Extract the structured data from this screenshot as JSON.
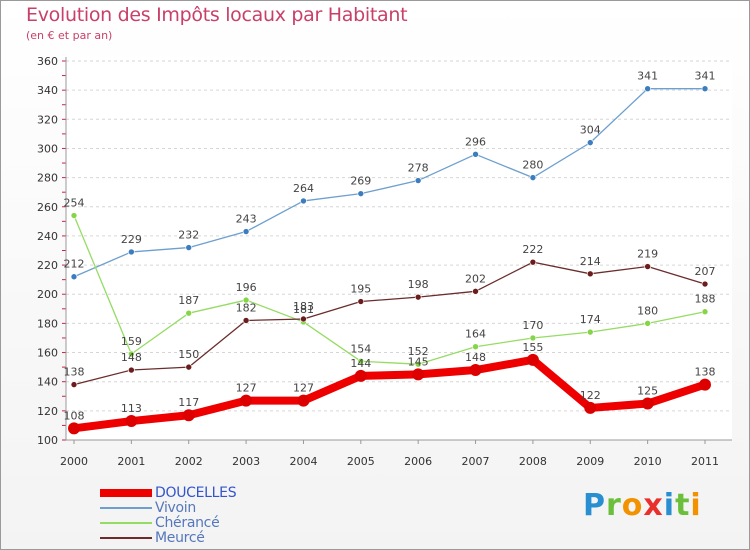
{
  "title": "Evolution des Impôts locaux par Habitant",
  "subtitle": "(en € et par an)",
  "chart_data": {
    "type": "line",
    "title": "Evolution des Impôts locaux par Habitant",
    "subtitle": "(en € et par an)",
    "x": [
      "2000",
      "2001",
      "2002",
      "2003",
      "2004",
      "2005",
      "2006",
      "2007",
      "2008",
      "2009",
      "2010",
      "2011"
    ],
    "ylim": [
      100,
      360
    ],
    "yticks": [
      100,
      120,
      140,
      160,
      180,
      200,
      220,
      240,
      260,
      280,
      300,
      320,
      340,
      360
    ],
    "grid": "horizontal",
    "legend": "bottom-left",
    "series": [
      {
        "name": "Vivoin",
        "color": "#6d9fcf",
        "marker": "#3b7dbf",
        "values": [
          212,
          229,
          232,
          243,
          264,
          269,
          278,
          296,
          280,
          304,
          341,
          341
        ]
      },
      {
        "name": "Chérancé",
        "color": "#96dc64",
        "marker": "#86d448",
        "values": [
          254,
          159,
          187,
          196,
          181,
          154,
          152,
          164,
          170,
          174,
          180,
          188
        ]
      },
      {
        "name": "Meurcé",
        "color": "#6b2c2c",
        "marker": "#6b1d1d",
        "values": [
          138,
          148,
          150,
          182,
          183,
          195,
          198,
          202,
          222,
          214,
          219,
          207
        ]
      },
      {
        "name": "DOUCELLES",
        "color": "#ee0000",
        "marker": "#dd0000",
        "values": [
          108,
          113,
          117,
          127,
          127,
          144,
          145,
          148,
          155,
          122,
          125,
          138
        ]
      }
    ]
  },
  "legend": [
    {
      "label": "DOUCELLES",
      "color": "#ee0000"
    },
    {
      "label": "Vivoin",
      "color": "#6d9fcf"
    },
    {
      "label": "Chérancé",
      "color": "#96dc64"
    },
    {
      "label": "Meurcé",
      "color": "#6b2c2c"
    }
  ],
  "logo": {
    "letters": [
      {
        "char": "P",
        "color": "#2a8fd0"
      },
      {
        "char": "r",
        "color": "#6bbf3a"
      },
      {
        "char": "o",
        "color": "#f39200"
      },
      {
        "char": "x",
        "color": "#e9302a"
      },
      {
        "char": "i",
        "color": "#2a8fd0"
      },
      {
        "char": "t",
        "color": "#6bbf3a"
      },
      {
        "char": "i",
        "color": "#f39200"
      }
    ]
  }
}
